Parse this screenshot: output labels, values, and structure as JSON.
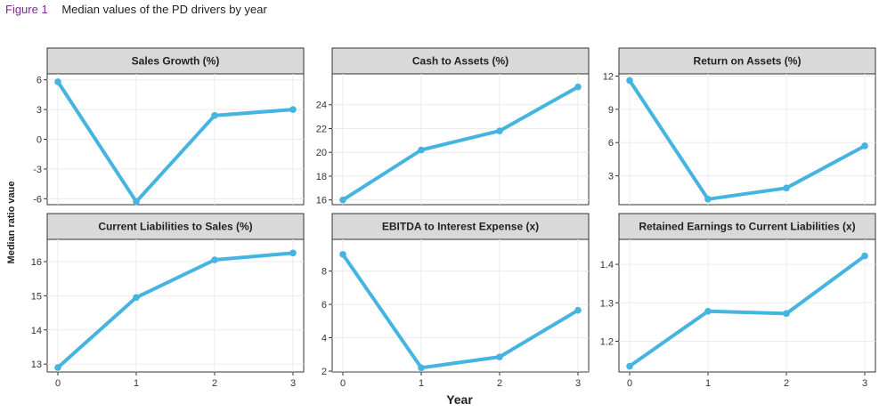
{
  "figure": {
    "label": "Figure 1",
    "title": "Median values of the PD drivers by year"
  },
  "chart_data": {
    "type": "line",
    "xlabel": "Year",
    "ylabel": "Median ratio vaue",
    "x": [
      0,
      1,
      2,
      3
    ],
    "line_color": "#45b4e0",
    "grid": true,
    "panels": [
      {
        "title": "Sales Growth (%)",
        "values": [
          5.8,
          -6.3,
          2.4,
          3.0
        ],
        "yticks": [
          -6,
          -3,
          0,
          3,
          6
        ],
        "ylim": [
          -6.6,
          6.6
        ]
      },
      {
        "title": "Cash to Assets (%)",
        "values": [
          16.0,
          20.2,
          21.8,
          25.5
        ],
        "yticks": [
          16,
          18,
          20,
          22,
          24
        ],
        "ylim": [
          15.6,
          26.6
        ]
      },
      {
        "title": "Return on Assets (%)",
        "values": [
          11.6,
          0.9,
          1.9,
          5.7
        ],
        "yticks": [
          3,
          6,
          9,
          12
        ],
        "ylim": [
          0.4,
          12.2
        ]
      },
      {
        "title": "Current Liabilities to Sales (%)",
        "values": [
          12.9,
          14.95,
          16.05,
          16.25
        ],
        "yticks": [
          13,
          14,
          15,
          16
        ],
        "ylim": [
          12.77,
          16.65
        ]
      },
      {
        "title": "EBITDA to Interest Expense (x)",
        "values": [
          9.0,
          2.2,
          2.85,
          5.65
        ],
        "yticks": [
          2,
          4,
          6,
          8
        ],
        "ylim": [
          1.95,
          9.9
        ]
      },
      {
        "title": "Retained Earnings to Current Liabilities (x)",
        "values": [
          1.135,
          1.278,
          1.272,
          1.422
        ],
        "yticks": [
          1.2,
          1.3,
          1.4
        ],
        "ylim": [
          1.12,
          1.465
        ]
      }
    ]
  }
}
